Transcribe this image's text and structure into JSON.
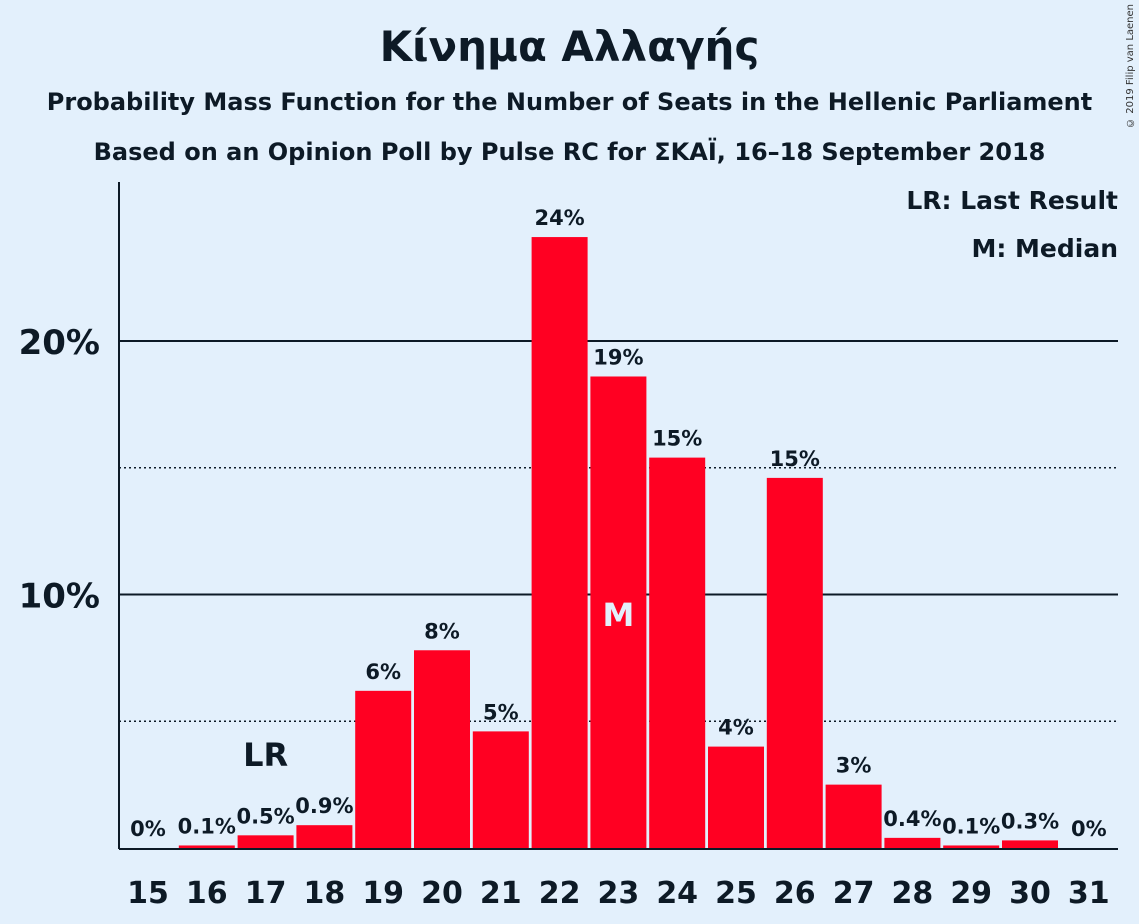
{
  "title": "Κίνημα Αλλαγής",
  "subtitle": "Probability Mass Function for the Number of Seats in the Hellenic Parliament",
  "source": "Based on an Opinion Poll by Pulse RC for ΣΚΑΪ, 16–18 September 2018",
  "copyright": "© 2019 Filip van Laenen",
  "legend": {
    "last_result": "LR: Last Result",
    "median": "M: Median",
    "position": "top-right"
  },
  "colors": {
    "background": "#e3f0fc",
    "bar": "#ff0022",
    "text": "#0d1a26"
  },
  "chart_data": {
    "type": "bar",
    "categories": [
      "15",
      "16",
      "17",
      "18",
      "19",
      "20",
      "21",
      "22",
      "23",
      "24",
      "25",
      "26",
      "27",
      "28",
      "29",
      "30",
      "31"
    ],
    "values": [
      0,
      0.1,
      0.5,
      0.9,
      6.2,
      7.8,
      4.6,
      24.1,
      18.6,
      15.4,
      4.0,
      14.6,
      2.5,
      0.4,
      0.1,
      0.3,
      0
    ],
    "labels": [
      "0%",
      "0.1%",
      "0.5%",
      "0.9%",
      "6%",
      "8%",
      "5%",
      "24%",
      "19%",
      "15%",
      "4%",
      "15%",
      "3%",
      "0.4%",
      "0.1%",
      "0.3%",
      "0%"
    ],
    "ylim": [
      0,
      26.3
    ],
    "y_ticks_major": [
      10,
      20
    ],
    "y_tick_labels": [
      "10%",
      "20%"
    ],
    "y_ticks_minor": [
      5,
      15
    ],
    "last_result": {
      "category": "17",
      "marker": "LR"
    },
    "median": {
      "category": "23",
      "marker": "M"
    }
  }
}
